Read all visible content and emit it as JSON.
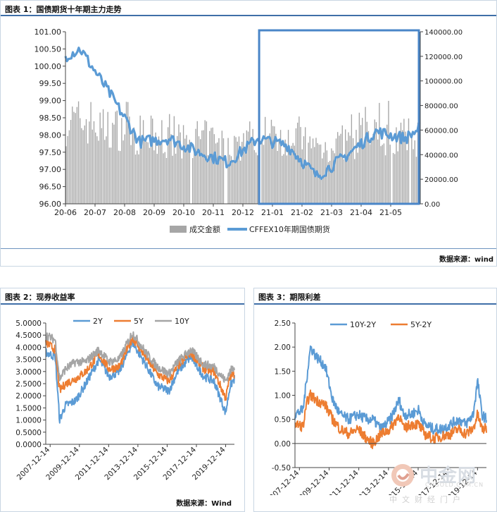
{
  "chart_data": [
    {
      "type": "bar+line",
      "title": "图表 1：国债期货十年期主力走势",
      "source": "数据来源：wind",
      "x_tick_labels": [
        "20-06",
        "20-07",
        "20-08",
        "20-09",
        "20-10",
        "20-11",
        "20-12",
        "21-01",
        "21-02",
        "21-03",
        "21-04",
        "21-05"
      ],
      "left_axis": {
        "min": 96.0,
        "max": 101.0,
        "ticks": [
          "96.00",
          "96.50",
          "97.00",
          "97.50",
          "98.00",
          "98.50",
          "99.00",
          "99.50",
          "100.00",
          "100.50",
          "101.00"
        ]
      },
      "right_axis": {
        "min": 0,
        "max": 140000,
        "ticks": [
          "0.00",
          "20000.00",
          "40000.00",
          "60000.00",
          "80000.00",
          "100000.00",
          "120000.00",
          "140000.00"
        ]
      },
      "series": [
        {
          "name": "成交金额",
          "type": "bar",
          "axis": "right",
          "color": "#a6a6a6",
          "monthly_values": [
            72000,
            66000,
            60000,
            54000,
            57000,
            52000,
            58000,
            60000,
            50000,
            54000,
            60000,
            58000
          ]
        },
        {
          "name": "CFFEX10年期国债期货",
          "type": "line",
          "axis": "left",
          "color": "#5b9bd5",
          "monthly_values": [
            100.5,
            99.2,
            97.8,
            97.9,
            97.5,
            97.2,
            97.9,
            97.7,
            96.8,
            97.4,
            98.1,
            97.9
          ]
        }
      ],
      "highlight_box": {
        "from": "21-01",
        "to": "21-05",
        "color": "#4a86c8"
      }
    },
    {
      "type": "line",
      "title": "图表 2：现券收益率",
      "source": "数据来源：Wind",
      "y_axis": {
        "min": 0,
        "max": 5,
        "ticks": [
          "0.0000",
          "0.5000",
          "1.0000",
          "1.5000",
          "2.0000",
          "2.5000",
          "3.0000",
          "3.5000",
          "4.0000",
          "4.5000",
          "5.0000"
        ]
      },
      "x_tick_labels": [
        "2007-12-14",
        "2009-12-14",
        "2011-12-14",
        "2013-12-14",
        "2015-12-14",
        "2017-12-14",
        "2019-12-14"
      ],
      "x_years": [
        2007.95,
        2020.9
      ],
      "series": [
        {
          "name": "2Y",
          "color": "#5b9bd5",
          "values": [
            [
              2007.95,
              3.8
            ],
            [
              2008.6,
              3.6
            ],
            [
              2008.9,
              1.0
            ],
            [
              2009.3,
              1.6
            ],
            [
              2010.0,
              1.8
            ],
            [
              2010.7,
              2.5
            ],
            [
              2011.6,
              3.5
            ],
            [
              2012.3,
              2.8
            ],
            [
              2013.0,
              3.0
            ],
            [
              2013.9,
              4.2
            ],
            [
              2014.8,
              3.3
            ],
            [
              2015.6,
              2.4
            ],
            [
              2016.4,
              2.2
            ],
            [
              2017.0,
              3.0
            ],
            [
              2017.9,
              3.6
            ],
            [
              2018.8,
              2.8
            ],
            [
              2019.5,
              2.6
            ],
            [
              2020.3,
              1.3
            ],
            [
              2020.6,
              2.4
            ],
            [
              2020.9,
              2.7
            ]
          ]
        },
        {
          "name": "5Y",
          "color": "#ed7d31",
          "values": [
            [
              2007.95,
              4.2
            ],
            [
              2008.6,
              3.9
            ],
            [
              2008.9,
              2.2
            ],
            [
              2009.3,
              2.5
            ],
            [
              2010.0,
              2.7
            ],
            [
              2010.7,
              3.0
            ],
            [
              2011.6,
              3.7
            ],
            [
              2012.3,
              3.1
            ],
            [
              2013.0,
              3.2
            ],
            [
              2013.9,
              4.4
            ],
            [
              2014.8,
              3.6
            ],
            [
              2015.6,
              2.9
            ],
            [
              2016.4,
              2.6
            ],
            [
              2017.0,
              3.2
            ],
            [
              2017.9,
              3.8
            ],
            [
              2018.8,
              3.1
            ],
            [
              2019.5,
              3.0
            ],
            [
              2020.3,
              1.9
            ],
            [
              2020.6,
              2.8
            ],
            [
              2020.9,
              2.9
            ]
          ]
        },
        {
          "name": "10Y",
          "color": "#a5a5a5",
          "values": [
            [
              2007.95,
              4.5
            ],
            [
              2008.6,
              4.3
            ],
            [
              2008.9,
              2.7
            ],
            [
              2009.3,
              3.1
            ],
            [
              2010.0,
              3.4
            ],
            [
              2010.7,
              3.4
            ],
            [
              2011.6,
              3.9
            ],
            [
              2012.3,
              3.4
            ],
            [
              2013.0,
              3.5
            ],
            [
              2013.9,
              4.6
            ],
            [
              2014.8,
              3.8
            ],
            [
              2015.6,
              3.2
            ],
            [
              2016.4,
              2.9
            ],
            [
              2017.0,
              3.4
            ],
            [
              2017.9,
              3.9
            ],
            [
              2018.8,
              3.3
            ],
            [
              2019.5,
              3.2
            ],
            [
              2020.3,
              2.6
            ],
            [
              2020.6,
              3.0
            ],
            [
              2020.9,
              3.2
            ]
          ]
        }
      ]
    },
    {
      "type": "line",
      "title": "图表 3：期限利差",
      "source": "数据来源：Wind",
      "y_axis": {
        "min": -0.5,
        "max": 2.5,
        "ticks": [
          "-0.50",
          "0.00",
          "0.50",
          "1.00",
          "1.50",
          "2.00",
          "2.50"
        ]
      },
      "x_tick_labels": [
        "2007-12-14",
        "2009-12-14",
        "2011-12-14",
        "2013-12-14",
        "2015-12-14",
        "2017-12-14",
        "2019-12-14"
      ],
      "x_years": [
        2007.95,
        2020.9
      ],
      "series": [
        {
          "name": "10Y-2Y",
          "color": "#5b9bd5",
          "values": [
            [
              2007.95,
              0.6
            ],
            [
              2008.5,
              0.7
            ],
            [
              2008.8,
              1.5
            ],
            [
              2009.0,
              2.0
            ],
            [
              2009.4,
              1.8
            ],
            [
              2010.0,
              1.6
            ],
            [
              2010.5,
              0.9
            ],
            [
              2011.0,
              0.6
            ],
            [
              2011.6,
              0.5
            ],
            [
              2012.2,
              0.6
            ],
            [
              2012.8,
              0.5
            ],
            [
              2013.2,
              0.5
            ],
            [
              2013.8,
              0.3
            ],
            [
              2014.4,
              0.5
            ],
            [
              2015.0,
              0.9
            ],
            [
              2015.3,
              0.6
            ],
            [
              2015.8,
              0.6
            ],
            [
              2016.3,
              0.7
            ],
            [
              2016.7,
              0.4
            ],
            [
              2017.3,
              0.3
            ],
            [
              2017.9,
              0.3
            ],
            [
              2018.5,
              0.4
            ],
            [
              2019.0,
              0.5
            ],
            [
              2019.5,
              0.4
            ],
            [
              2020.0,
              0.6
            ],
            [
              2020.3,
              1.3
            ],
            [
              2020.6,
              0.6
            ],
            [
              2020.9,
              0.5
            ]
          ]
        },
        {
          "name": "5Y-2Y",
          "color": "#ed7d31",
          "values": [
            [
              2007.95,
              0.4
            ],
            [
              2008.5,
              0.35
            ],
            [
              2008.8,
              0.9
            ],
            [
              2009.0,
              1.0
            ],
            [
              2009.4,
              0.9
            ],
            [
              2010.0,
              0.8
            ],
            [
              2010.5,
              0.5
            ],
            [
              2011.0,
              0.3
            ],
            [
              2011.6,
              0.2
            ],
            [
              2012.2,
              0.3
            ],
            [
              2012.8,
              0.1
            ],
            [
              2013.2,
              0.0
            ],
            [
              2013.8,
              0.2
            ],
            [
              2014.4,
              0.3
            ],
            [
              2015.0,
              0.6
            ],
            [
              2015.3,
              0.3
            ],
            [
              2015.8,
              0.4
            ],
            [
              2016.3,
              0.4
            ],
            [
              2016.7,
              0.2
            ],
            [
              2017.3,
              0.1
            ],
            [
              2017.9,
              0.15
            ],
            [
              2018.5,
              0.2
            ],
            [
              2019.0,
              0.3
            ],
            [
              2019.5,
              0.2
            ],
            [
              2020.0,
              0.3
            ],
            [
              2020.3,
              0.6
            ],
            [
              2020.6,
              0.3
            ],
            [
              2020.9,
              0.3
            ]
          ]
        }
      ]
    }
  ],
  "watermark": {
    "logo_text": "中金网",
    "domain_text": "CNGOLD.COM.CN",
    "tagline": "中文财经门户"
  }
}
